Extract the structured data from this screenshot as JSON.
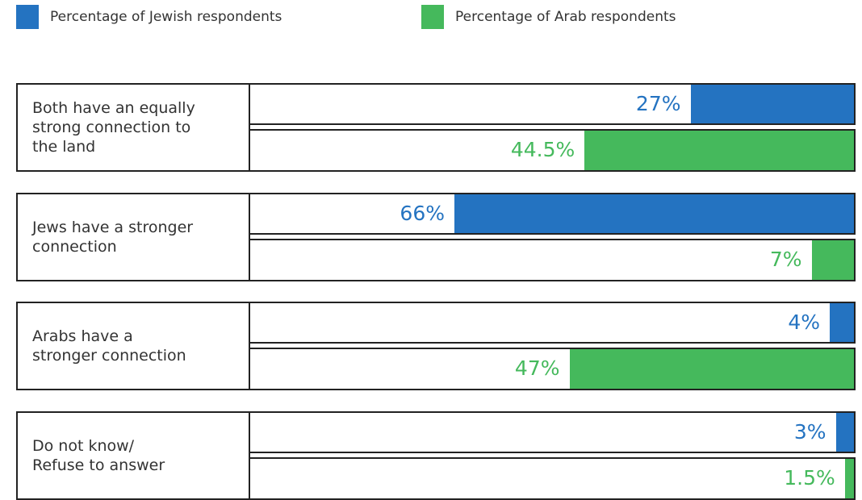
{
  "chart_data": {
    "type": "bar",
    "orientation": "horizontal",
    "categories": [
      "Both have an equally\nstrong connection to\nthe land",
      "Jews have a stronger\nconnection",
      "Arabs have a\nstronger connection",
      "Do not know/\nRefuse to answer"
    ],
    "series": [
      {
        "name": "Percentage of Jewish respondents",
        "color": "#2473c1",
        "values": [
          27,
          66,
          4,
          3
        ],
        "value_labels": [
          "27%",
          "66%",
          "4%",
          "3%"
        ]
      },
      {
        "name": "Percentage of Arab respondents",
        "color": "#45b95c",
        "values": [
          44.5,
          7,
          47,
          1.5
        ],
        "value_labels": [
          "44.5%",
          "7%",
          "47%",
          "1.5%"
        ]
      }
    ],
    "xlim": [
      0,
      100
    ]
  }
}
